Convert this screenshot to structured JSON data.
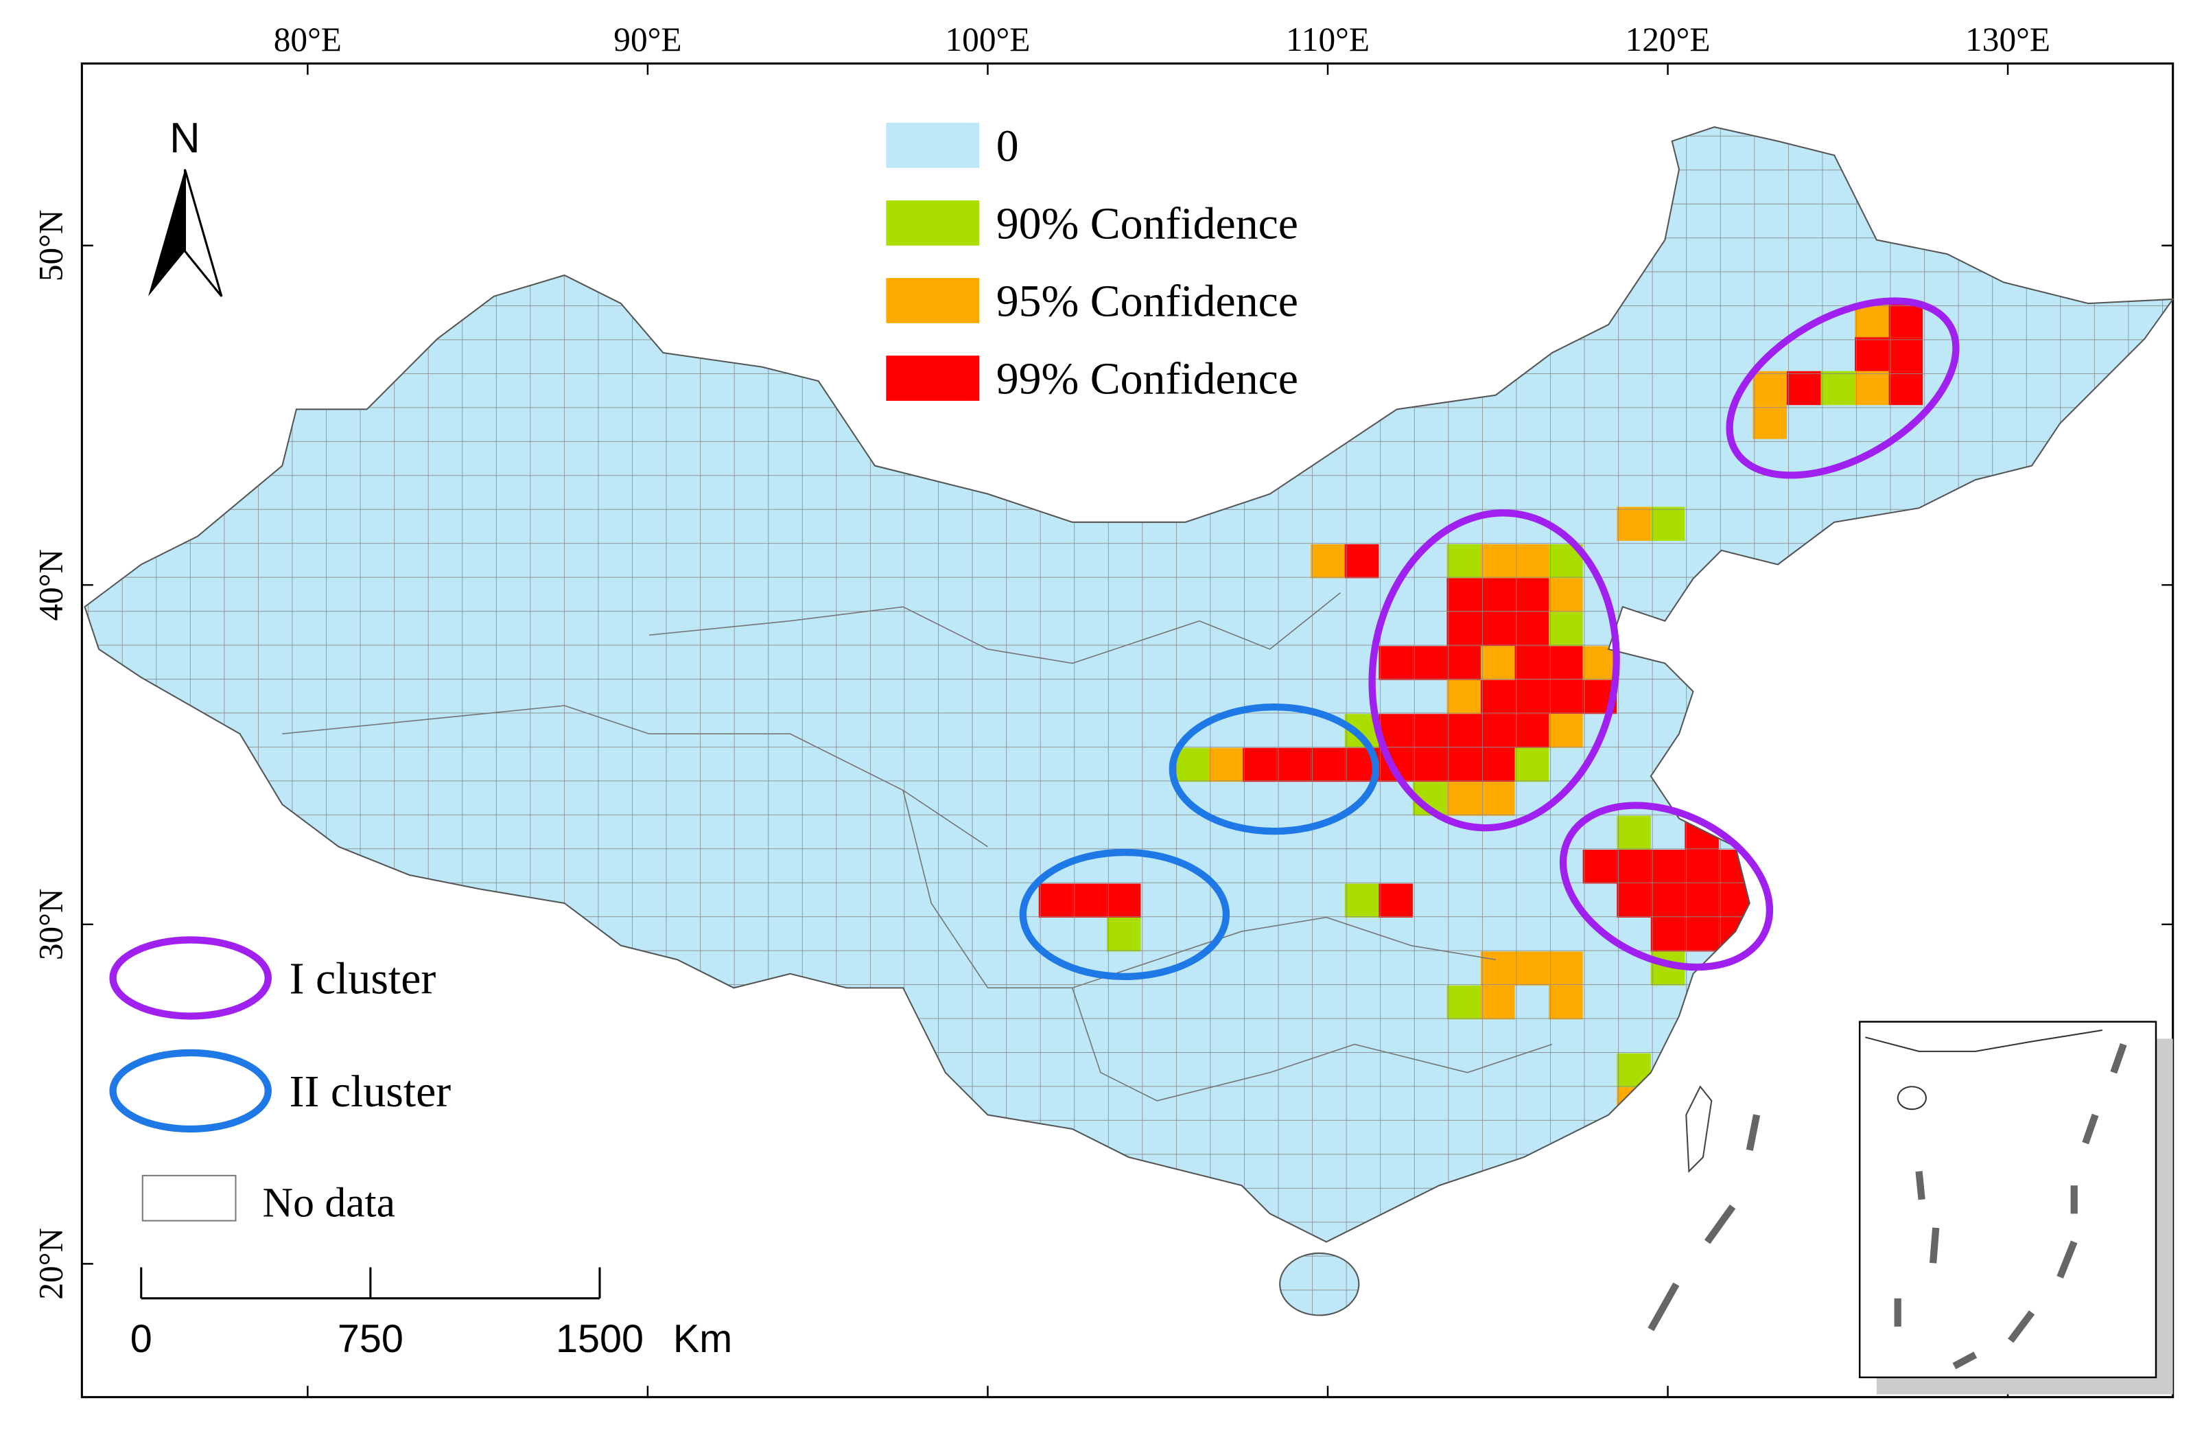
{
  "map": {
    "x_ticks": [
      {
        "value": 80,
        "label": "80°E"
      },
      {
        "value": 90,
        "label": "90°E"
      },
      {
        "value": 100,
        "label": "100°E"
      },
      {
        "value": 110,
        "label": "110°E"
      },
      {
        "value": 120,
        "label": "120°E"
      },
      {
        "value": 130,
        "label": "130°E"
      }
    ],
    "y_ticks": [
      {
        "value": 50,
        "label": "50°N"
      },
      {
        "value": 40,
        "label": "40°N"
      },
      {
        "value": 30,
        "label": "30°N"
      },
      {
        "value": 20,
        "label": "20°N"
      }
    ],
    "north": "N",
    "legend": [
      {
        "label": "0",
        "color": "#bee8f8"
      },
      {
        "label": "90% Confidence",
        "color": "#aadd00"
      },
      {
        "label": "95% Confidence",
        "color": "#ffaa00"
      },
      {
        "label": "99% Confidence",
        "color": "#ff0000"
      }
    ],
    "clusters": [
      {
        "label": "I cluster",
        "color": "#a020f0"
      },
      {
        "label": "II cluster",
        "color": "#1e78e6"
      }
    ],
    "no_data": "No data",
    "scale_bar": {
      "ticks": [
        0,
        750,
        1500
      ],
      "unit": "Km"
    },
    "cells": [
      {
        "lon": 126,
        "lat": 47.8,
        "level": 2
      },
      {
        "lon": 127,
        "lat": 47.8,
        "level": 3
      },
      {
        "lon": 126,
        "lat": 46.8,
        "level": 3
      },
      {
        "lon": 127,
        "lat": 46.8,
        "level": 3
      },
      {
        "lon": 123,
        "lat": 45.8,
        "level": 2
      },
      {
        "lon": 124,
        "lat": 45.8,
        "level": 3
      },
      {
        "lon": 125,
        "lat": 45.8,
        "level": 1
      },
      {
        "lon": 126,
        "lat": 45.8,
        "level": 2
      },
      {
        "lon": 127,
        "lat": 45.8,
        "level": 3
      },
      {
        "lon": 123,
        "lat": 44.8,
        "level": 2
      },
      {
        "lon": 119,
        "lat": 41.8,
        "level": 2
      },
      {
        "lon": 120,
        "lat": 41.8,
        "level": 1
      },
      {
        "lon": 110,
        "lat": 40.7,
        "level": 2
      },
      {
        "lon": 111,
        "lat": 40.7,
        "level": 3
      },
      {
        "lon": 114,
        "lat": 40.7,
        "level": 1
      },
      {
        "lon": 115,
        "lat": 40.7,
        "level": 2
      },
      {
        "lon": 116,
        "lat": 40.7,
        "level": 2
      },
      {
        "lon": 117,
        "lat": 40.7,
        "level": 1
      },
      {
        "lon": 114,
        "lat": 39.7,
        "level": 3
      },
      {
        "lon": 115,
        "lat": 39.7,
        "level": 3
      },
      {
        "lon": 116,
        "lat": 39.7,
        "level": 3
      },
      {
        "lon": 117,
        "lat": 39.7,
        "level": 2
      },
      {
        "lon": 114,
        "lat": 38.7,
        "level": 3
      },
      {
        "lon": 115,
        "lat": 38.7,
        "level": 3
      },
      {
        "lon": 116,
        "lat": 38.7,
        "level": 3
      },
      {
        "lon": 117,
        "lat": 38.7,
        "level": 1
      },
      {
        "lon": 112,
        "lat": 37.7,
        "level": 3
      },
      {
        "lon": 113,
        "lat": 37.7,
        "level": 3
      },
      {
        "lon": 114,
        "lat": 37.7,
        "level": 3
      },
      {
        "lon": 115,
        "lat": 37.7,
        "level": 2
      },
      {
        "lon": 116,
        "lat": 37.7,
        "level": 3
      },
      {
        "lon": 117,
        "lat": 37.7,
        "level": 3
      },
      {
        "lon": 118,
        "lat": 37.7,
        "level": 2
      },
      {
        "lon": 114,
        "lat": 36.7,
        "level": 2
      },
      {
        "lon": 115,
        "lat": 36.7,
        "level": 3
      },
      {
        "lon": 116,
        "lat": 36.7,
        "level": 3
      },
      {
        "lon": 117,
        "lat": 36.7,
        "level": 3
      },
      {
        "lon": 118,
        "lat": 36.7,
        "level": 3
      },
      {
        "lon": 111,
        "lat": 35.7,
        "level": 1
      },
      {
        "lon": 112,
        "lat": 35.7,
        "level": 3
      },
      {
        "lon": 113,
        "lat": 35.7,
        "level": 3
      },
      {
        "lon": 114,
        "lat": 35.7,
        "level": 3
      },
      {
        "lon": 115,
        "lat": 35.7,
        "level": 3
      },
      {
        "lon": 116,
        "lat": 35.7,
        "level": 3
      },
      {
        "lon": 117,
        "lat": 35.7,
        "level": 2
      },
      {
        "lon": 106,
        "lat": 34.7,
        "level": 1
      },
      {
        "lon": 107,
        "lat": 34.7,
        "level": 2
      },
      {
        "lon": 108,
        "lat": 34.7,
        "level": 3
      },
      {
        "lon": 109,
        "lat": 34.7,
        "level": 3
      },
      {
        "lon": 110,
        "lat": 34.7,
        "level": 3
      },
      {
        "lon": 111,
        "lat": 34.7,
        "level": 3
      },
      {
        "lon": 112,
        "lat": 34.7,
        "level": 3
      },
      {
        "lon": 113,
        "lat": 34.7,
        "level": 3
      },
      {
        "lon": 114,
        "lat": 34.7,
        "level": 3
      },
      {
        "lon": 115,
        "lat": 34.7,
        "level": 3
      },
      {
        "lon": 116,
        "lat": 34.7,
        "level": 1
      },
      {
        "lon": 113,
        "lat": 33.7,
        "level": 1
      },
      {
        "lon": 114,
        "lat": 33.7,
        "level": 2
      },
      {
        "lon": 115,
        "lat": 33.7,
        "level": 2
      },
      {
        "lon": 102,
        "lat": 30.7,
        "level": 3
      },
      {
        "lon": 103,
        "lat": 30.7,
        "level": 3
      },
      {
        "lon": 104,
        "lat": 30.7,
        "level": 3
      },
      {
        "lon": 104,
        "lat": 29.7,
        "level": 1
      },
      {
        "lon": 111,
        "lat": 30.7,
        "level": 1
      },
      {
        "lon": 112,
        "lat": 30.7,
        "level": 3
      },
      {
        "lon": 119,
        "lat": 32.7,
        "level": 1
      },
      {
        "lon": 121,
        "lat": 32.7,
        "level": 3
      },
      {
        "lon": 118,
        "lat": 31.7,
        "level": 3
      },
      {
        "lon": 119,
        "lat": 31.7,
        "level": 3
      },
      {
        "lon": 120,
        "lat": 31.7,
        "level": 3
      },
      {
        "lon": 121,
        "lat": 31.7,
        "level": 3
      },
      {
        "lon": 122,
        "lat": 31.7,
        "level": 3
      },
      {
        "lon": 119,
        "lat": 30.7,
        "level": 3
      },
      {
        "lon": 120,
        "lat": 30.7,
        "level": 3
      },
      {
        "lon": 121,
        "lat": 30.7,
        "level": 3
      },
      {
        "lon": 122,
        "lat": 30.7,
        "level": 3
      },
      {
        "lon": 120,
        "lat": 29.7,
        "level": 3
      },
      {
        "lon": 121,
        "lat": 29.7,
        "level": 3
      },
      {
        "lon": 122,
        "lat": 29.7,
        "level": 3
      },
      {
        "lon": 115,
        "lat": 28.7,
        "level": 2
      },
      {
        "lon": 116,
        "lat": 28.7,
        "level": 2
      },
      {
        "lon": 117,
        "lat": 28.7,
        "level": 2
      },
      {
        "lon": 120,
        "lat": 28.7,
        "level": 1
      },
      {
        "lon": 114,
        "lat": 27.7,
        "level": 1
      },
      {
        "lon": 115,
        "lat": 27.7,
        "level": 2
      },
      {
        "lon": 117,
        "lat": 27.7,
        "level": 2
      },
      {
        "lon": 119,
        "lat": 25.7,
        "level": 1
      },
      {
        "lon": 119,
        "lat": 24.7,
        "level": 2
      }
    ]
  }
}
